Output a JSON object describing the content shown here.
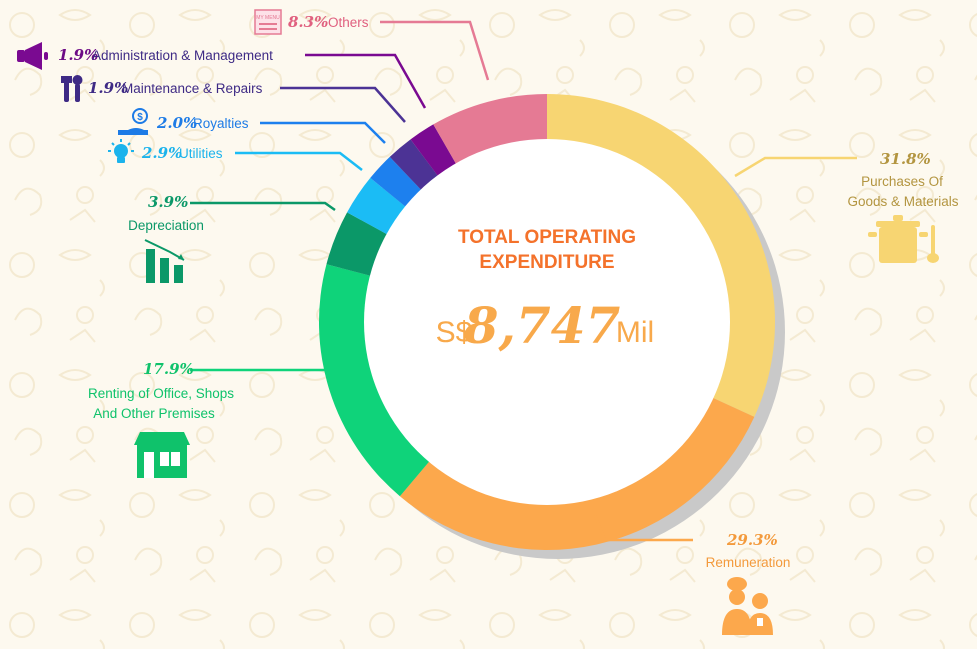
{
  "chart_data": {
    "type": "pie",
    "variant": "donut",
    "title": "",
    "center": {
      "title_line1": "TOTAL OPERATING",
      "title_line2": "EXPENDITURE",
      "currency": "S$",
      "value": "8,747",
      "unit": "Mil"
    },
    "slices": [
      {
        "key": "purchases",
        "value": 31.8,
        "pct_label": "31.8%",
        "label_lines": [
          "Purchases Of",
          "Goods & Materials"
        ],
        "color": "#f7d572",
        "text_color": "#b39540",
        "icon": "cooking-pot-icon"
      },
      {
        "key": "remuneration",
        "value": 29.3,
        "pct_label": "29.3%",
        "label_lines": [
          "Remuneration"
        ],
        "color": "#fca84c",
        "text_color": "#f39a3c",
        "icon": "staff-icon"
      },
      {
        "key": "renting",
        "value": 17.9,
        "pct_label": "17.9%",
        "label_lines": [
          "Renting of Office, Shops",
          "And Other Premises"
        ],
        "color": "#0fd37a",
        "text_color": "#0fc26b",
        "icon": "storefront-icon"
      },
      {
        "key": "depreciation",
        "value": 3.9,
        "pct_label": "3.9%",
        "label_lines": [
          "Depreciation"
        ],
        "color": "#0b9868",
        "text_color": "#0b9868",
        "icon": "declining-bars-icon"
      },
      {
        "key": "utilities",
        "value": 2.9,
        "pct_label": "2.9%",
        "label_lines": [
          "Utilities"
        ],
        "color": "#1bbcf5",
        "text_color": "#1bb3ec",
        "icon": "lightbulb-icon"
      },
      {
        "key": "royalties",
        "value": 2.0,
        "pct_label": "2.0%",
        "label_lines": [
          "Royalties"
        ],
        "color": "#1d80ee",
        "text_color": "#1d7be6",
        "icon": "money-hand-icon"
      },
      {
        "key": "maintenance",
        "value": 1.9,
        "pct_label": "1.9%",
        "label_lines": [
          "Maintenance & Repairs"
        ],
        "color": "#4c3395",
        "text_color": "#3e2a85",
        "icon": "tools-icon"
      },
      {
        "key": "administration",
        "value": 1.9,
        "pct_label": "1.9%",
        "label_lines": [
          "Administration & Management"
        ],
        "color": "#7a0a91",
        "text_color": "#6c0a85",
        "icon": "megaphone-icon"
      },
      {
        "key": "others",
        "value": 8.3,
        "pct_label": "8.3%",
        "label_lines": [
          "Others"
        ],
        "color": "#e57a94",
        "text_color": "#e0607f",
        "icon": "menu-card-icon"
      }
    ],
    "others_icon_text": "MY MENU",
    "legend": "none"
  }
}
